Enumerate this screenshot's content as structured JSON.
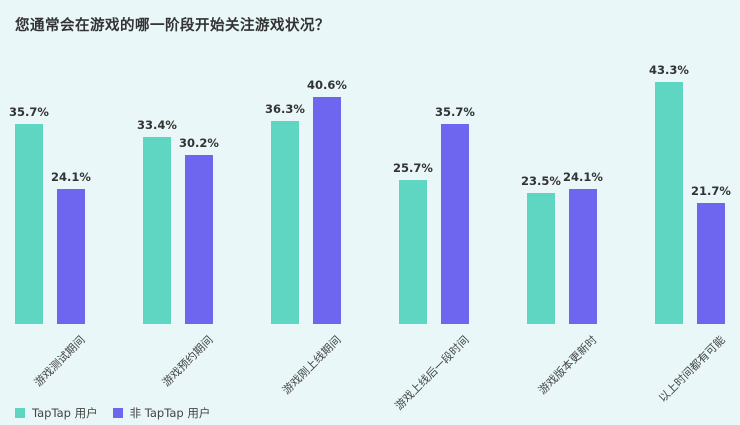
{
  "chart_data": {
    "type": "bar",
    "title": "您通常会在游戏的哪一阶段开始关注游戏状况？",
    "categories": [
      "游戏测试期间",
      "游戏预约期间",
      "游戏刚上线期间",
      "游戏上线后一段时间",
      "游戏版本更新时",
      "以上时间都有可能"
    ],
    "series": [
      {
        "name": "TapTap 用户",
        "color": "#5fd6c2",
        "values": [
          35.7,
          33.4,
          36.3,
          25.7,
          23.5,
          43.3
        ],
        "labels": [
          "35.7%",
          "33.4%",
          "36.3%",
          "25.7%",
          "23.5%",
          "43.3%"
        ]
      },
      {
        "name": "非 TapTap 用户",
        "color": "#6e66ef",
        "values": [
          24.1,
          30.2,
          40.6,
          35.7,
          24.1,
          21.7
        ],
        "labels": [
          "24.1%",
          "30.2%",
          "40.6%",
          "35.7%",
          "24.1%",
          "21.7%"
        ]
      }
    ],
    "xlabel": "",
    "ylabel": "",
    "grid": false,
    "legend_position": "bottom-left"
  }
}
